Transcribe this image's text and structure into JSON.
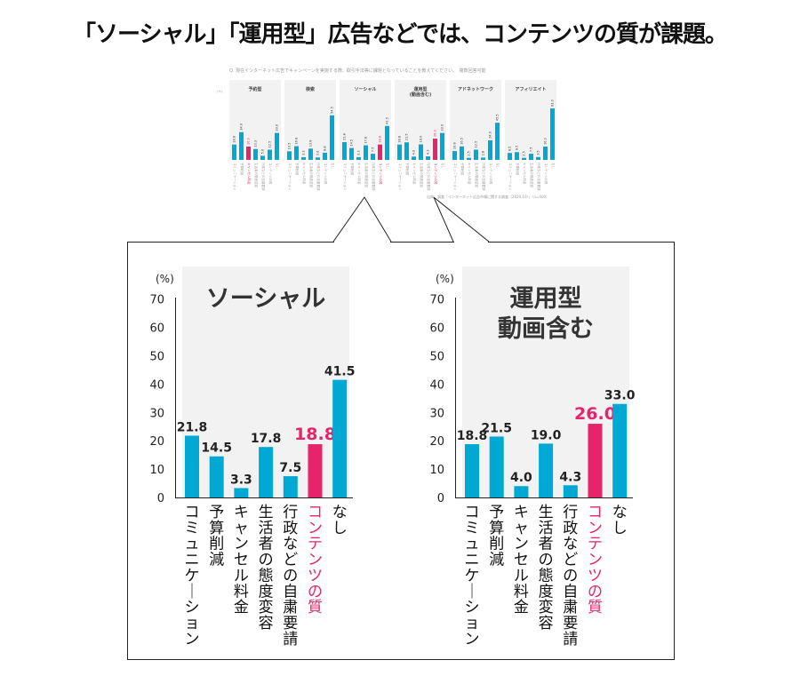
{
  "title": "「ソーシャル」「運用型」広告などでは、コンテンツの質が課題。",
  "question": "Q. 現在インターネット広告でキャンペーンを実施する際、取引手法等に課題となっていることを教えてください。　複数回答可能",
  "source": "出典：調査「インターネット広告市場に関する調査（2020.10）」（n=400）",
  "colors": {
    "bar": "#00a9d4",
    "highlight": "#e5246b",
    "panel": "#f2f2f2"
  },
  "chart_data": {
    "type": "bar",
    "unit": "(%)",
    "ylim": [
      0,
      70
    ],
    "yticks": [
      0,
      10,
      20,
      30,
      40,
      50,
      60,
      70
    ],
    "categories": [
      "コミュニケーション",
      "予算削減",
      "キャンセル料金",
      "生活者の態度変容",
      "行政などの自粛要請",
      "コンテンツの質",
      "なし"
    ],
    "thumbnails": [
      {
        "name": "予約型",
        "values": [
          18.8,
          34.0,
          16.3,
          13.3,
          5.0,
          12.5,
          33.0
        ],
        "highlight": 2
      },
      {
        "name": "検索",
        "values": [
          10.5,
          16.8,
          3.3,
          13.8,
          3.0,
          8.8,
          54.5
        ],
        "highlight": -1
      },
      {
        "name": "ソーシャル",
        "values": [
          21.8,
          14.5,
          3.3,
          17.8,
          7.5,
          18.8,
          41.5
        ],
        "highlight": 5
      },
      {
        "name": "運用型\n(動画含む)",
        "values": [
          18.8,
          21.5,
          4.0,
          19.0,
          4.3,
          26.0,
          33.0
        ],
        "highlight": 5
      },
      {
        "name": "アドネットワーク",
        "values": [
          10.8,
          16.5,
          2.5,
          12.5,
          2.8,
          24.0,
          45.5
        ],
        "highlight": -1
      },
      {
        "name": "アフィリエイト",
        "values": [
          8.5,
          9.5,
          2.5,
          7.5,
          3.5,
          16.3,
          63.0
        ],
        "highlight": -1
      }
    ],
    "detail": [
      {
        "name": "ソーシャル",
        "values": [
          21.8,
          14.5,
          3.3,
          17.8,
          7.5,
          18.8,
          41.5
        ],
        "highlight": 5
      },
      {
        "name": "運用型\n動画含む",
        "values": [
          18.8,
          21.5,
          4.0,
          19.0,
          4.3,
          26.0,
          33.0
        ],
        "highlight": 5
      }
    ]
  }
}
